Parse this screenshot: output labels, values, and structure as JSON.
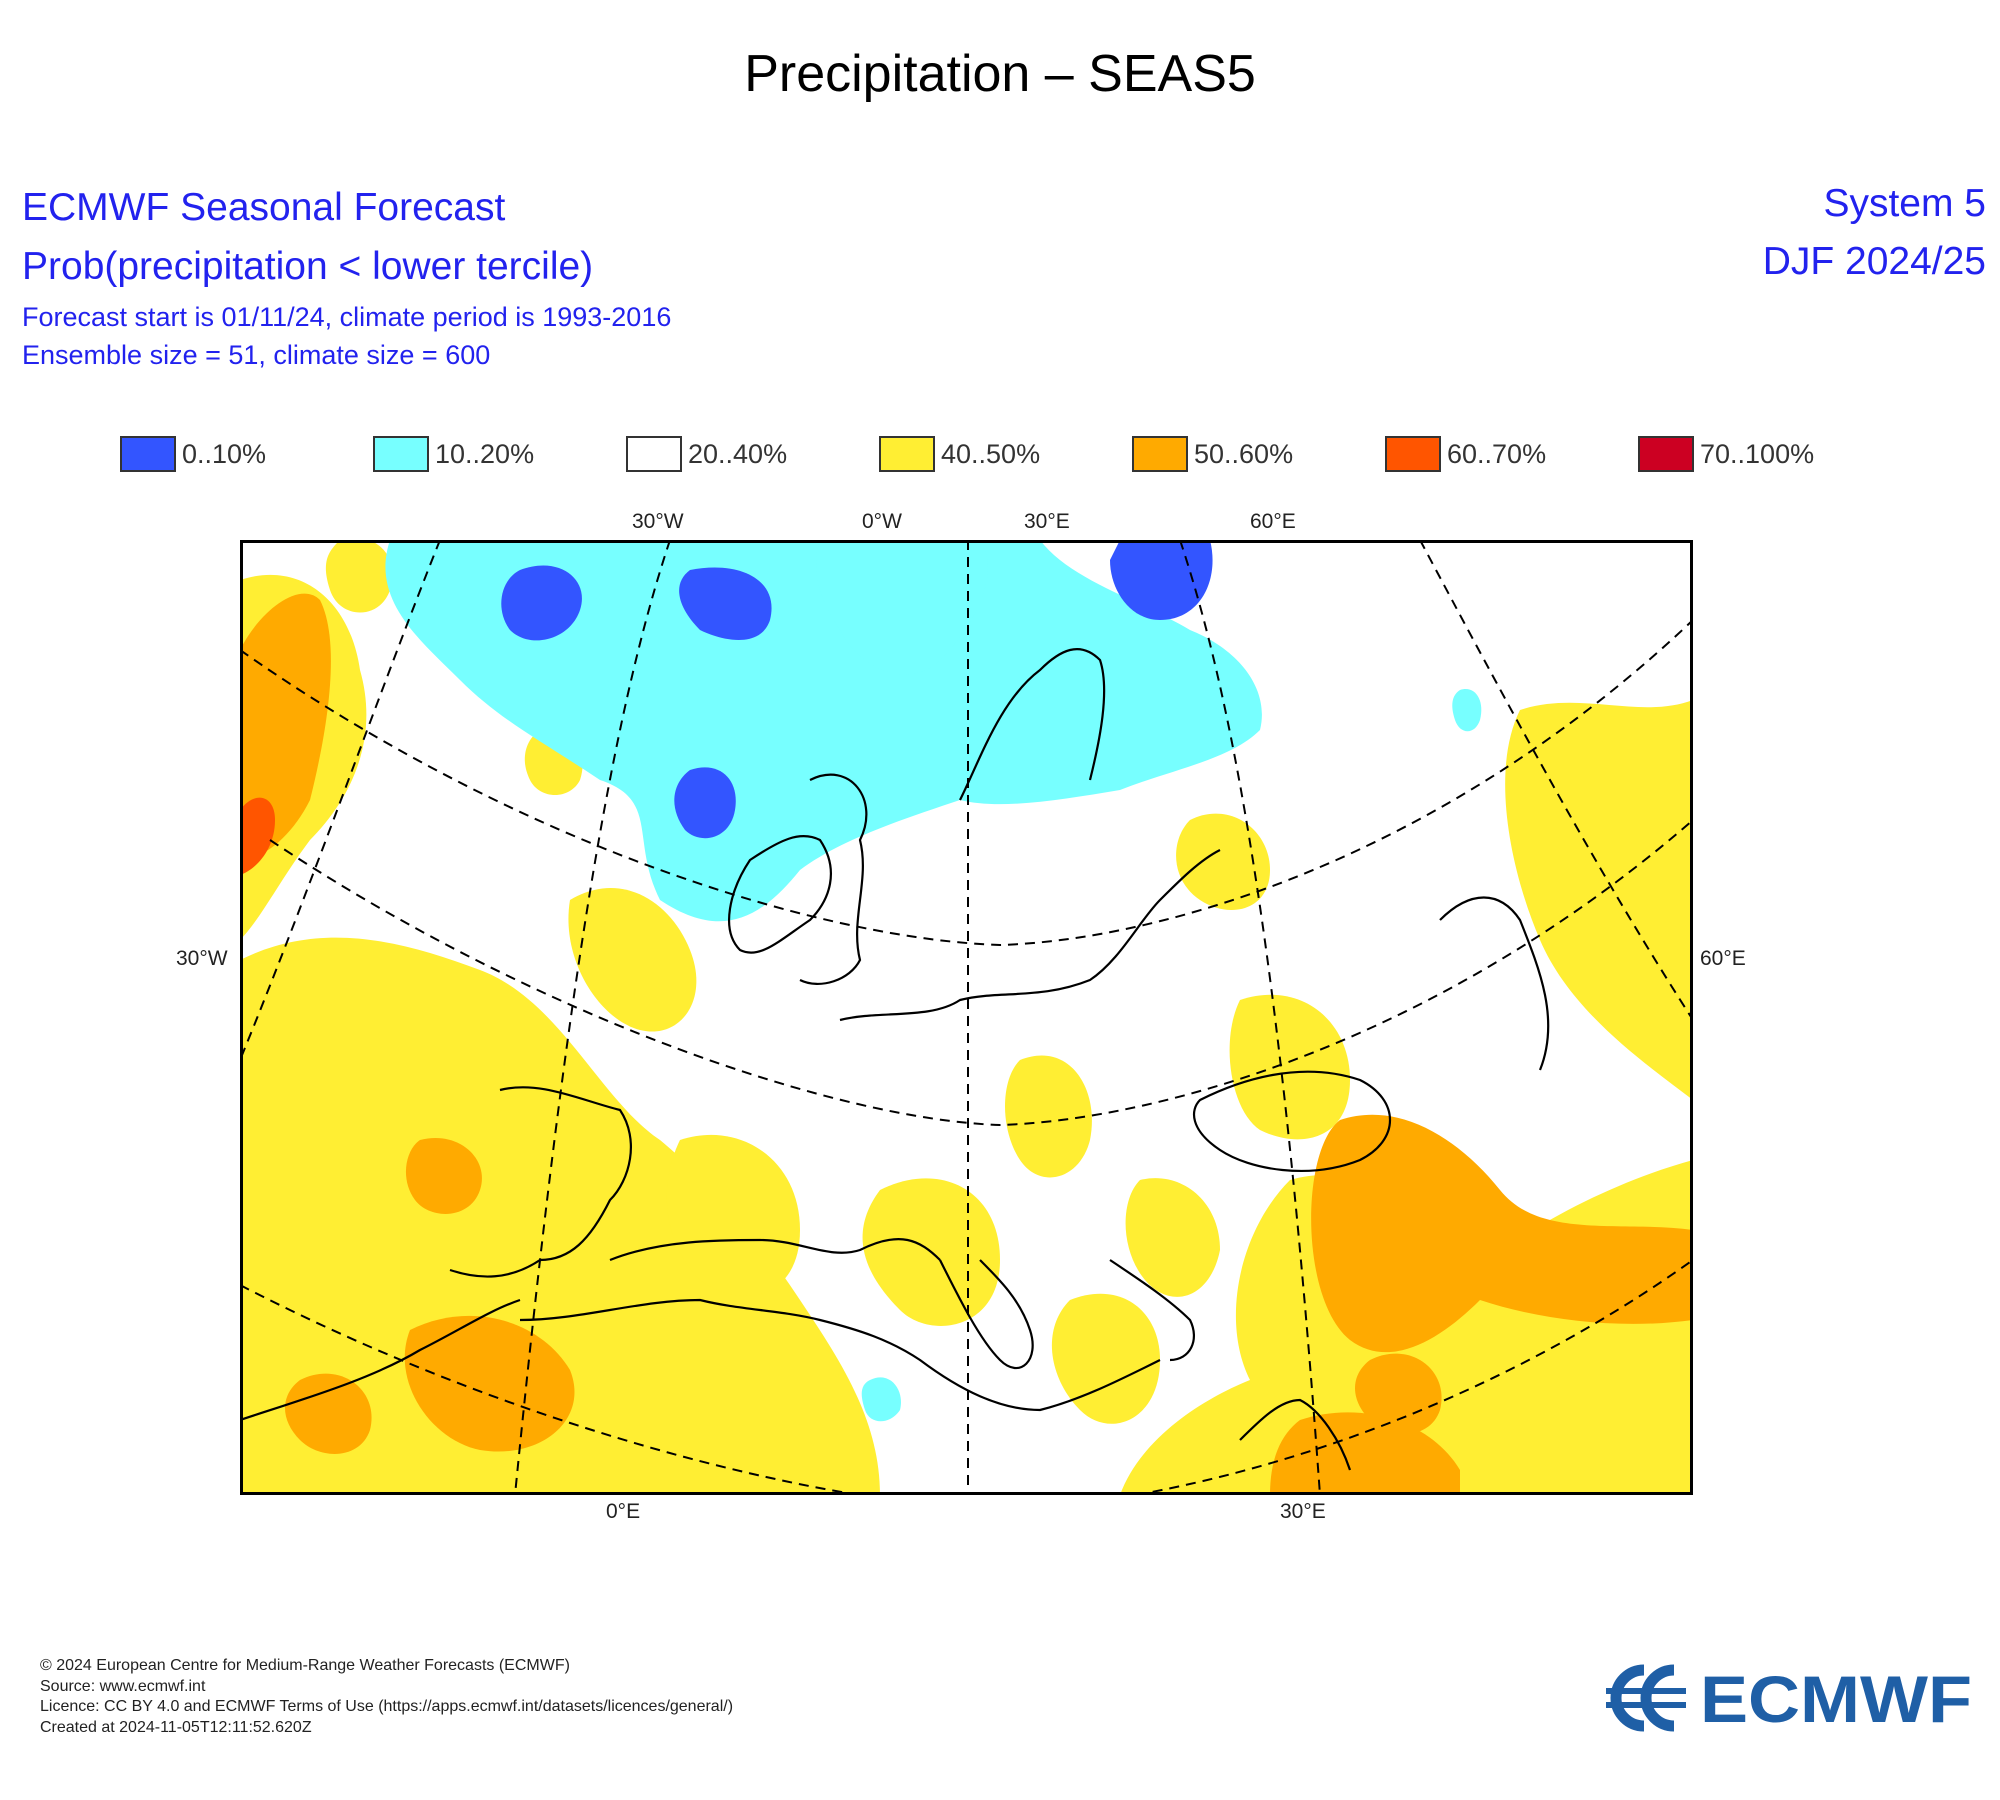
{
  "title": "Precipitation – SEAS5",
  "header": {
    "line1": "ECMWF Seasonal Forecast",
    "line2": "Prob(precipitation < lower tercile)",
    "line3": "Forecast start is 01/11/24, climate period is 1993-2016",
    "line4": "Ensemble size = 51, climate size = 600",
    "system": "System 5",
    "season": "DJF 2024/25"
  },
  "legend": [
    {
      "label": "0..10%",
      "color": "#3355ff"
    },
    {
      "label": "10..20%",
      "color": "#77ffff"
    },
    {
      "label": "20..40%",
      "color": "#ffffff"
    },
    {
      "label": "40..50%",
      "color": "#ffee33"
    },
    {
      "label": "50..60%",
      "color": "#ffaa00"
    },
    {
      "label": "60..70%",
      "color": "#ff5500"
    },
    {
      "label": "70..100%",
      "color": "#cc0022"
    }
  ],
  "map": {
    "top_labels": [
      "30°W",
      "0°W",
      "30°E",
      "60°E"
    ],
    "bottom_labels": [
      "0°E",
      "30°E"
    ],
    "left_label": "30°W",
    "right_label": "60°E"
  },
  "footer": {
    "copyright": "© 2024 European Centre for Medium-Range Weather Forecasts (ECMWF)",
    "source": "Source: www.ecmwf.int",
    "licence": "Licence: CC BY 4.0 and ECMWF Terms of Use (https://apps.ecmwf.int/datasets/licences/general/)",
    "created": "Created at 2024-11-05T12:11:52.620Z"
  },
  "logo_text": "ECMWF"
}
